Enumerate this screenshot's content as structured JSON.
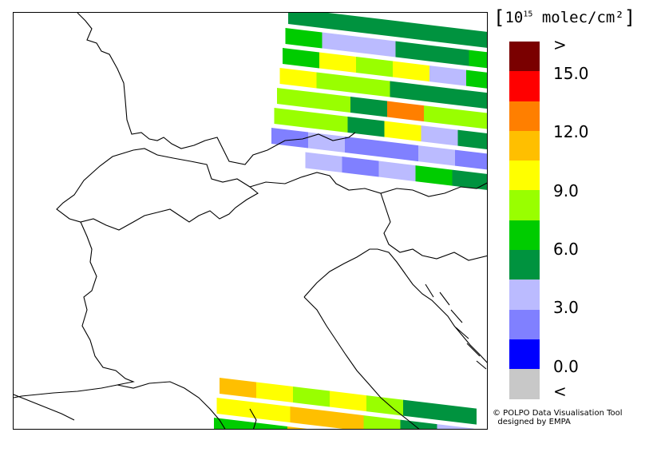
{
  "units": {
    "open": "[",
    "base": "10",
    "exp": "15",
    "rest": " molec/cm²",
    "close": "]"
  },
  "colorbar": {
    "colors": [
      "#7a0000",
      "#ff0000",
      "#ff7f00",
      "#ffbf00",
      "#ffff00",
      "#99ff00",
      "#00cc00",
      "#00933f",
      "#bbbbff",
      "#8080ff",
      "#0000ff",
      "#c8c8c8"
    ],
    "labels": [
      ">",
      "15.0",
      "12.0",
      "9.0",
      "6.0",
      "3.0",
      "0.0",
      "<"
    ]
  },
  "credit": {
    "line1": "© POLPO Data Visualisation Tool",
    "line2": "  designed by EMPA"
  },
  "map": {
    "swath_ne": [
      [
        "#00933f",
        "#00933f",
        "#00933f",
        "#00933f",
        "#00933f",
        "#00933f"
      ],
      [
        "#00cc00",
        "#bbbbff",
        "#bbbbff",
        "#00933f",
        "#00933f",
        "#00cc00"
      ],
      [
        "#00cc00",
        "#ffff00",
        "#99ff00",
        "#ffff00",
        "#bbbbff",
        "#00cc00"
      ],
      [
        "#ffff00",
        "#99ff00",
        "#99ff00",
        "#00933f",
        "#00933f",
        "#00933f"
      ],
      [
        "#99ff00",
        "#99ff00",
        "#00933f",
        "#ff7f00",
        "#99ff00",
        "#99ff00"
      ],
      [
        "#99ff00",
        "#99ff00",
        "#00933f",
        "#ffff00",
        "#bbbbff",
        "#00933f"
      ],
      [
        "#8080ff",
        "#bbbbff",
        "#8080ff",
        "#8080ff",
        "#bbbbff",
        "#8080ff"
      ],
      [
        "#ffffff",
        "#bbbbff",
        "#8080ff",
        "#bbbbff",
        "#00cc00",
        "#00933f"
      ]
    ],
    "swath_sw": [
      [
        "#ffbf00",
        "#ffff00",
        "#99ff00",
        "#ffff00",
        "#99ff00",
        "#00933f",
        "#00933f"
      ],
      [
        "#ffff00",
        "#ffff00",
        "#ffbf00",
        "#ffbf00",
        "#99ff00",
        "#00933f",
        "#bbbbff"
      ],
      [
        "#00cc00",
        "#00cc00",
        "#ffbf00",
        "#ffff00",
        "#99ff00",
        "#00933f",
        "#bbbbff"
      ]
    ]
  }
}
